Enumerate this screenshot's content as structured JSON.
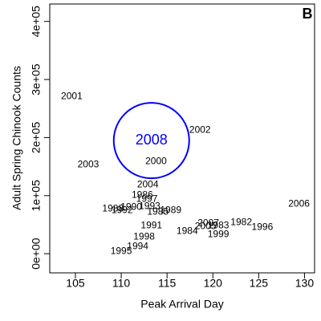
{
  "chart_data": {
    "type": "scatter",
    "x_label": "Peak Arrival Day",
    "y_label": "Adult Spring Chinook Counts",
    "panel_label": "B",
    "xlim": [
      102.2,
      131.1
    ],
    "xticks": [
      105,
      110,
      115,
      120,
      125,
      130
    ],
    "ylim": [
      -33000,
      430000
    ],
    "yticks": [
      {
        "value": 0,
        "label": "0e+00"
      },
      {
        "value": 100000,
        "label": "1e+05"
      },
      {
        "value": 200000,
        "label": "2e+05"
      },
      {
        "value": 300000,
        "label": "3e+05"
      },
      {
        "value": 400000,
        "label": "4e+05"
      }
    ],
    "series": [
      {
        "color": "#000000",
        "labels": [
          "2001",
          "2002",
          "2003",
          "2000",
          "2004",
          "2006",
          "1986",
          "1997",
          "1988",
          "1992",
          "1990",
          "1993",
          "1985",
          "1989",
          "1991",
          "2007",
          "2005",
          "1983",
          "1982",
          "1996",
          "1984",
          "1999",
          "1998",
          "1994",
          "1995"
        ],
        "x": [
          104.6,
          118.6,
          106.4,
          113.8,
          112.9,
          129.4,
          112.3,
          112.8,
          109.1,
          110.1,
          111.1,
          113.1,
          114.0,
          115.4,
          113.3,
          119.5,
          119.2,
          120.6,
          123.1,
          125.4,
          117.2,
          120.6,
          112.5,
          111.8,
          110.0
        ],
        "values": [
          270700,
          212700,
          153300,
          158800,
          118800,
          85600,
          100800,
          93900,
          77300,
          74600,
          80100,
          81500,
          71800,
          74600,
          48300,
          52500,
          47000,
          48300,
          53900,
          45600,
          38700,
          33100,
          29000,
          12400,
          4100
        ]
      },
      {
        "color": "#0000ff",
        "labels": [
          "2008"
        ],
        "x": [
          113.3
        ],
        "values": [
          194800
        ]
      }
    ]
  }
}
